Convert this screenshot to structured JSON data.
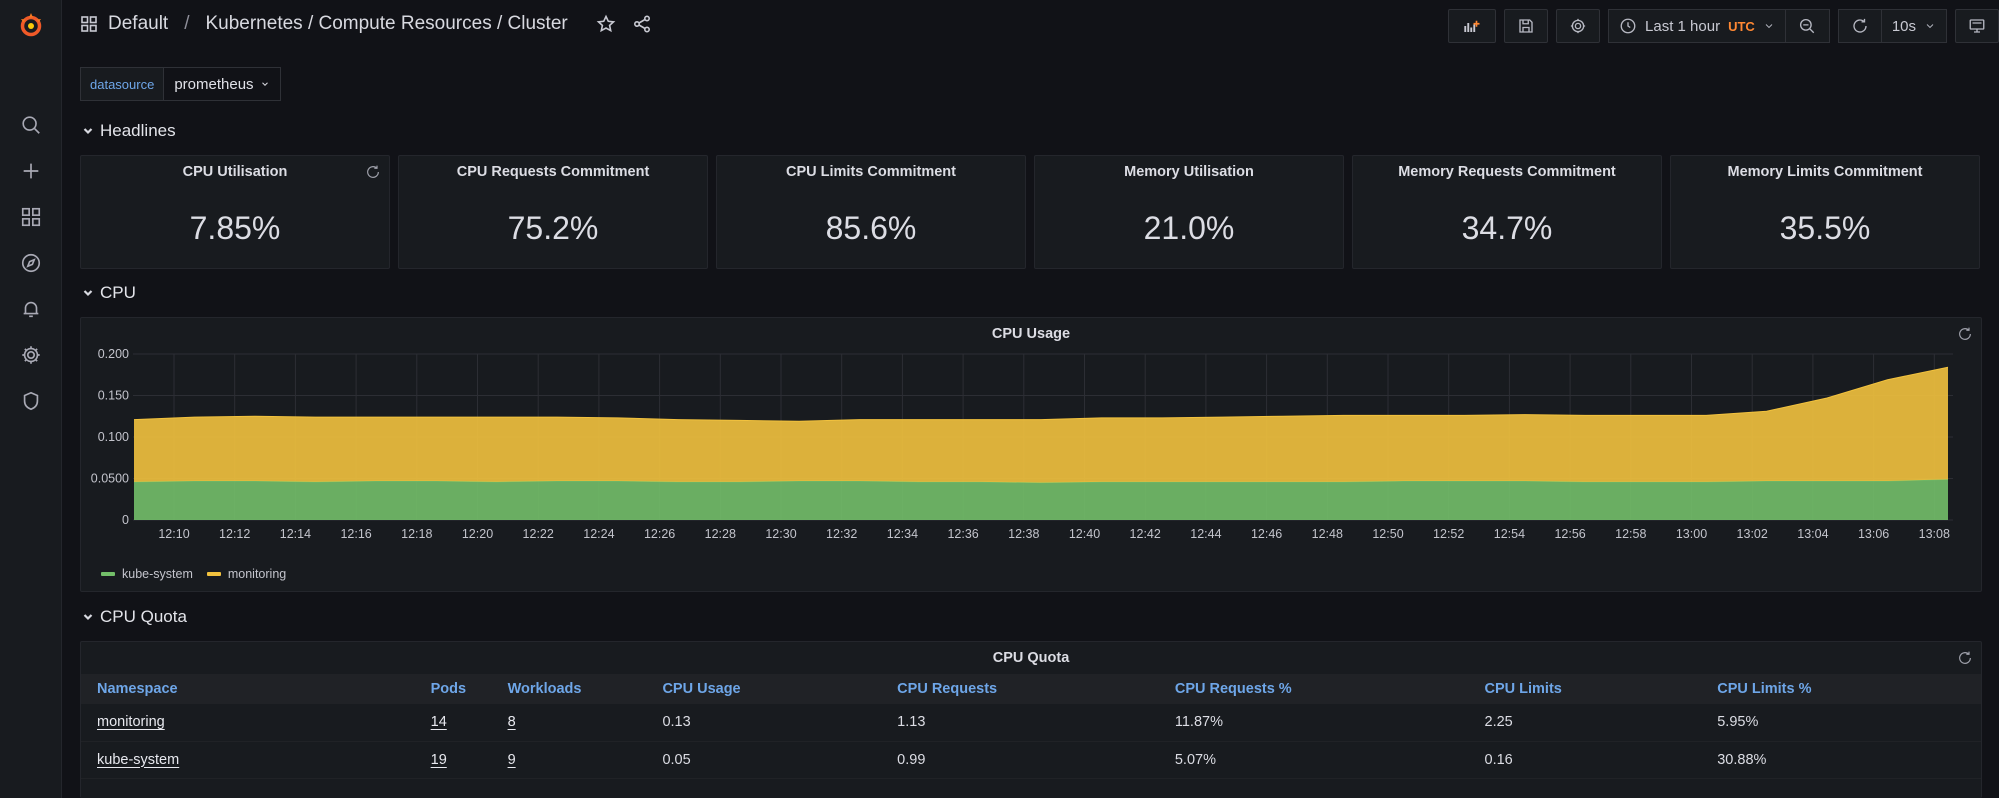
{
  "breadcrumb": {
    "folder": "Default",
    "separator": "/",
    "dashboard": "Kubernetes / Compute Resources / Cluster"
  },
  "toolbar": {
    "time_range": "Last 1 hour",
    "timezone": "UTC",
    "refresh_interval": "10s"
  },
  "variables": {
    "label": "datasource",
    "value": "prometheus"
  },
  "rows": {
    "headlines": "Headlines",
    "cpu": "CPU",
    "cpu_quota": "CPU Quota"
  },
  "stats": [
    {
      "title": "CPU Utilisation",
      "value": "7.85%"
    },
    {
      "title": "CPU Requests Commitment",
      "value": "75.2%"
    },
    {
      "title": "CPU Limits Commitment",
      "value": "85.6%"
    },
    {
      "title": "Memory Utilisation",
      "value": "21.0%"
    },
    {
      "title": "Memory Requests Commitment",
      "value": "34.7%"
    },
    {
      "title": "Memory Limits Commitment",
      "value": "35.5%"
    }
  ],
  "cpu_usage_panel": {
    "title": "CPU Usage"
  },
  "chart_data": {
    "type": "area",
    "title": "CPU Usage",
    "stacked": true,
    "y_ticks": [
      "0",
      "0.0500",
      "0.100",
      "0.150",
      "0.200"
    ],
    "ylim": [
      0,
      0.2
    ],
    "x_ticks": [
      "12:10",
      "12:12",
      "12:14",
      "12:16",
      "12:18",
      "12:20",
      "12:22",
      "12:24",
      "12:26",
      "12:28",
      "12:30",
      "12:32",
      "12:34",
      "12:36",
      "12:38",
      "12:40",
      "12:42",
      "12:44",
      "12:46",
      "12:48",
      "12:50",
      "12:52",
      "12:54",
      "12:56",
      "12:58",
      "13:00",
      "13:02",
      "13:04",
      "13:06",
      "13:08"
    ],
    "x_minutes_range": [
      "12:09",
      "13:09"
    ],
    "grid": true,
    "legend_position": "bottom-left",
    "series": [
      {
        "name": "kube-system",
        "color": "#73bf69",
        "values": [
          0.046,
          0.047,
          0.047,
          0.046,
          0.047,
          0.047,
          0.046,
          0.047,
          0.047,
          0.046,
          0.046,
          0.047,
          0.047,
          0.046,
          0.046,
          0.045,
          0.046,
          0.046,
          0.046,
          0.046,
          0.046,
          0.047,
          0.047,
          0.047,
          0.046,
          0.046,
          0.046,
          0.047,
          0.047,
          0.047,
          0.049
        ]
      },
      {
        "name": "monitoring",
        "color": "#f2c23e",
        "values": [
          0.075,
          0.077,
          0.078,
          0.078,
          0.077,
          0.077,
          0.078,
          0.077,
          0.076,
          0.075,
          0.074,
          0.072,
          0.074,
          0.075,
          0.075,
          0.076,
          0.077,
          0.077,
          0.078,
          0.079,
          0.08,
          0.079,
          0.079,
          0.08,
          0.08,
          0.08,
          0.08,
          0.084,
          0.1,
          0.122,
          0.135
        ]
      }
    ]
  },
  "legend": [
    "kube-system",
    "monitoring"
  ],
  "colors": {
    "kube_system": "#73bf69",
    "monitoring": "#f2c23e",
    "link": "#6ea6e8",
    "accent": "#ff8833"
  },
  "cpu_quota_panel": {
    "title": "CPU Quota"
  },
  "quota_table": {
    "columns": [
      "Namespace",
      "Pods",
      "Workloads",
      "CPU Usage",
      "CPU Requests",
      "CPU Requests %",
      "CPU Limits",
      "CPU Limits %"
    ],
    "rows": [
      [
        "monitoring",
        "14",
        "8",
        "0.13",
        "1.13",
        "11.87%",
        "2.25",
        "5.95%"
      ],
      [
        "kube-system",
        "19",
        "9",
        "0.05",
        "0.99",
        "5.07%",
        "0.16",
        "30.88%"
      ]
    ]
  }
}
